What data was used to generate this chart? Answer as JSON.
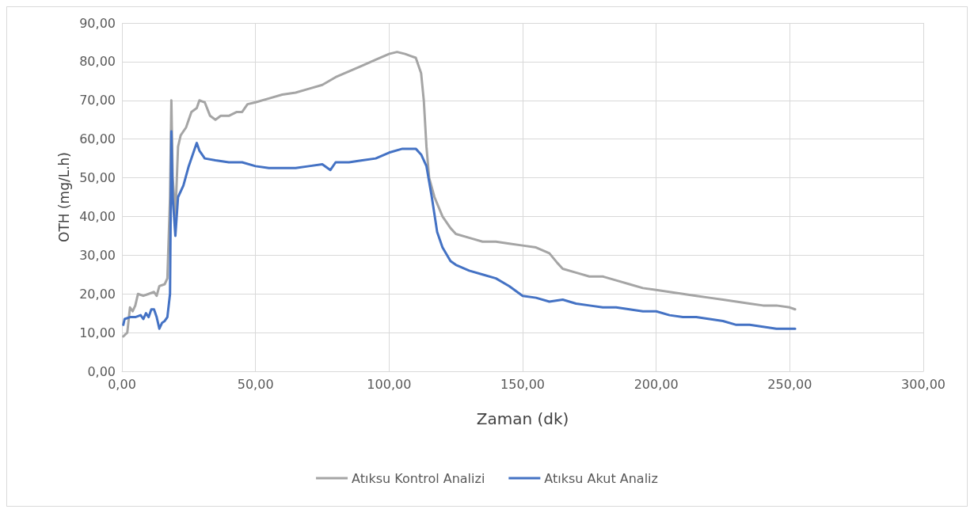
{
  "chart_data": {
    "type": "line",
    "xlabel": "Zaman (dk)",
    "ylabel": "OTH (mg/L.h)",
    "xlim": [
      0,
      300
    ],
    "xticks": [
      {
        "value": 0,
        "label": "0,00"
      },
      {
        "value": 50,
        "label": "50,00"
      },
      {
        "value": 100,
        "label": "100,00"
      },
      {
        "value": 150,
        "label": "150,00"
      },
      {
        "value": 200,
        "label": "200,00"
      },
      {
        "value": 250,
        "label": "250,00"
      },
      {
        "value": 300,
        "label": "300,00"
      }
    ],
    "ylim": [
      0,
      90
    ],
    "yticks": [
      {
        "value": 0,
        "label": "0,00"
      },
      {
        "value": 10,
        "label": "10,00"
      },
      {
        "value": 20,
        "label": "20,00"
      },
      {
        "value": 30,
        "label": "30,00"
      },
      {
        "value": 40,
        "label": "40,00"
      },
      {
        "value": 50,
        "label": "50,00"
      },
      {
        "value": 60,
        "label": "60,00"
      },
      {
        "value": 70,
        "label": "70,00"
      },
      {
        "value": 80,
        "label": "80,00"
      },
      {
        "value": 90,
        "label": "90,00"
      }
    ],
    "grid": true,
    "legend": "bottom",
    "marker": "none",
    "line_style": "solid",
    "series": [
      {
        "name": "Atıksu Kontrol Analizi",
        "color": "#a5a5a5",
        "x": [
          0.5,
          2,
          3,
          4,
          5,
          6,
          8,
          10,
          12,
          13,
          14,
          16,
          17,
          18,
          18.5,
          19,
          20,
          21,
          22,
          24,
          26,
          28,
          29,
          31,
          33,
          35,
          37,
          40,
          43,
          45,
          47,
          50,
          55,
          60,
          65,
          70,
          75,
          80,
          85,
          90,
          95,
          100,
          103,
          106,
          108,
          110,
          112,
          113,
          114,
          115,
          117,
          120,
          123,
          125,
          130,
          135,
          140,
          145,
          150,
          155,
          160,
          163,
          165,
          170,
          175,
          180,
          185,
          190,
          195,
          200,
          205,
          210,
          215,
          220,
          225,
          230,
          235,
          240,
          245,
          250,
          252
        ],
        "values": [
          9,
          10,
          16.5,
          15.5,
          17,
          20,
          19.5,
          20,
          20.5,
          19.5,
          22,
          22.5,
          24,
          45,
          70,
          50,
          40,
          58,
          61,
          63,
          67,
          68,
          70,
          69.5,
          66,
          65,
          66,
          66,
          67,
          67,
          69,
          69.5,
          70.5,
          71.5,
          72,
          73,
          74,
          76,
          77.5,
          79,
          80.5,
          82,
          82.5,
          82,
          81.5,
          81,
          77,
          70,
          58,
          50,
          45,
          40,
          37,
          35.5,
          34.5,
          33.5,
          33.5,
          33,
          32.5,
          32,
          30.5,
          28,
          26.5,
          25.5,
          24.5,
          24.5,
          23.5,
          22.5,
          21.5,
          21,
          20.5,
          20,
          19.5,
          19,
          18.5,
          18,
          17.5,
          17,
          17,
          16.5,
          16
        ]
      },
      {
        "name": "Atıksu Akut Analiz",
        "color": "#4472c4",
        "x": [
          0.5,
          1,
          3,
          5,
          7,
          8,
          9,
          10,
          11,
          12,
          13,
          14,
          15,
          16,
          17,
          18,
          18.5,
          19,
          20,
          21,
          23,
          25,
          27,
          28,
          29,
          31,
          35,
          40,
          45,
          50,
          55,
          60,
          65,
          70,
          75,
          78,
          80,
          85,
          90,
          95,
          100,
          105,
          110,
          112,
          114,
          116,
          118,
          120,
          123,
          125,
          130,
          135,
          140,
          145,
          150,
          155,
          160,
          165,
          170,
          175,
          180,
          185,
          190,
          195,
          200,
          205,
          210,
          215,
          220,
          225,
          230,
          235,
          240,
          245,
          250,
          252
        ],
        "values": [
          12,
          13.5,
          14,
          14,
          14.5,
          13.5,
          15,
          14,
          16,
          16,
          14,
          11,
          12.5,
          13,
          14,
          20,
          62,
          45,
          35,
          45,
          48,
          53,
          57,
          59,
          57,
          55,
          54.5,
          54,
          54,
          53,
          52.5,
          52.5,
          52.5,
          53,
          53.5,
          52,
          54,
          54,
          54.5,
          55,
          56.5,
          57.5,
          57.5,
          56,
          53,
          45,
          36,
          32,
          28.5,
          27.5,
          26,
          25,
          24,
          22,
          19.5,
          19,
          18,
          18.5,
          17.5,
          17,
          16.5,
          16.5,
          16,
          15.5,
          15.5,
          14.5,
          14,
          14,
          13.5,
          13,
          12,
          12,
          11.5,
          11,
          11,
          11
        ]
      }
    ]
  }
}
